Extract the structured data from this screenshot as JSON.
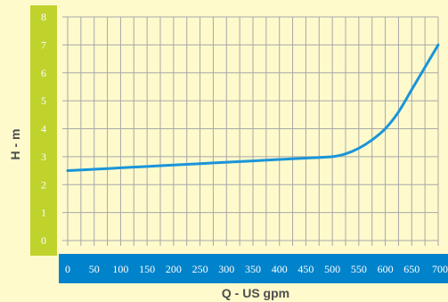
{
  "chart_data": {
    "type": "line",
    "title": "",
    "xlabel": "Q - US gpm",
    "ylabel": "H - m",
    "xlim": [
      0,
      700
    ],
    "ylim": [
      0,
      8
    ],
    "x_ticks": [
      0,
      50,
      100,
      150,
      200,
      250,
      300,
      350,
      400,
      450,
      500,
      550,
      600,
      650,
      700
    ],
    "y_ticks": [
      0,
      1,
      2,
      3,
      4,
      5,
      6,
      7,
      8
    ],
    "grid": true,
    "legend": "none",
    "series": [
      {
        "x": [
          0,
          50,
          100,
          150,
          200,
          250,
          300,
          350,
          400,
          450,
          500,
          525,
          550,
          575,
          600,
          625,
          650,
          675,
          700
        ],
        "y": [
          2.5,
          2.55,
          2.6,
          2.65,
          2.7,
          2.75,
          2.8,
          2.85,
          2.9,
          2.95,
          3.0,
          3.1,
          3.3,
          3.6,
          4.0,
          4.6,
          5.4,
          6.2,
          7.0
        ]
      }
    ]
  },
  "colors": {
    "background": "#FEFACC",
    "y_axis_band": "#C0D22C",
    "x_axis_band": "#0083CB",
    "grid": "#A8A8A8",
    "curve": "#1A95D9",
    "tick_text": "#FFFFFF",
    "axis_title": "#4D4D4D"
  }
}
